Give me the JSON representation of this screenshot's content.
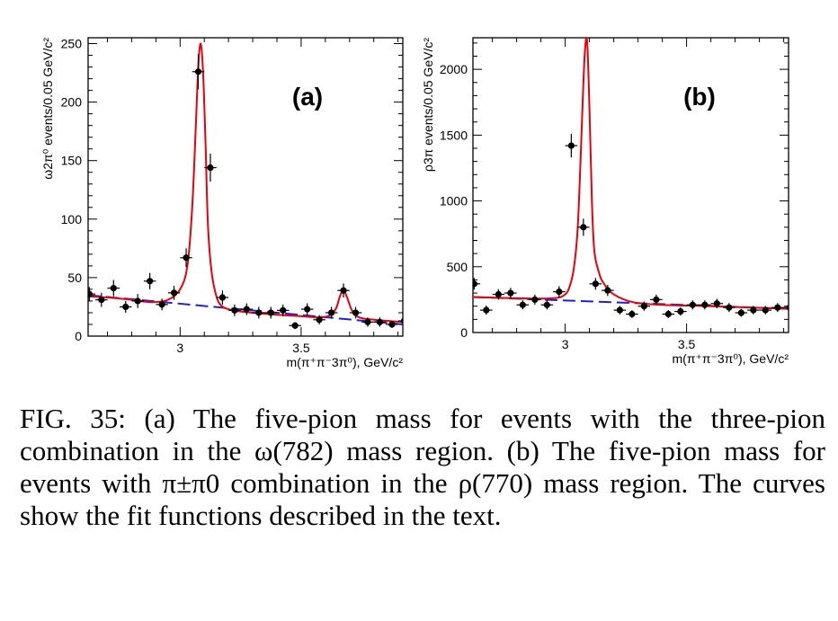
{
  "figure": {
    "caption": "FIG. 35: (a) The five-pion mass for events with the three-pion combination in the ω(782) mass region. (b) The five-pion mass for events with π±π0 combination in the ρ(770) mass region. The curves show the fit functions described in the text."
  },
  "colors": {
    "fit": "#e8000b",
    "background": "#1f1fe0",
    "points": "#000000"
  },
  "chart_data": [
    {
      "type": "scatter",
      "panel_label": "(a)",
      "xlabel": "m(π⁺π⁻3π⁰), GeV/c²",
      "ylabel": "ω2π⁰ events/0.05 GeV/c²",
      "xlim": [
        2.62,
        3.92
      ],
      "ylim": [
        0,
        255
      ],
      "xticks": [
        3,
        3.5
      ],
      "xtick_labels": [
        "3",
        "3.5"
      ],
      "yticks": [
        0,
        50,
        100,
        150,
        200,
        250
      ],
      "ytick_labels": [
        "0",
        "50",
        "100",
        "150",
        "200",
        "250"
      ],
      "x_bin_halfwidth": 0.025,
      "series": [
        {
          "kind": "data",
          "x": [
            2.625,
            2.675,
            2.725,
            2.775,
            2.825,
            2.875,
            2.925,
            2.975,
            3.025,
            3.075,
            3.125,
            3.175,
            3.225,
            3.275,
            3.325,
            3.375,
            3.425,
            3.475,
            3.525,
            3.575,
            3.625,
            3.675,
            3.725,
            3.775,
            3.825,
            3.875,
            3.925
          ],
          "y": [
            36,
            31,
            41,
            25,
            30,
            47,
            27,
            37,
            67,
            226,
            144,
            33,
            22,
            23,
            20,
            20,
            22,
            9,
            23,
            14,
            20,
            39,
            20,
            12,
            12,
            10,
            13
          ],
          "err": [
            6,
            6,
            7,
            5,
            6,
            7,
            5,
            6,
            8,
            15,
            12,
            6,
            5,
            5,
            5,
            5,
            5,
            3,
            5,
            4,
            5,
            6,
            5,
            4,
            4,
            3,
            4
          ]
        },
        {
          "kind": "fit",
          "x": [
            2.62,
            2.7,
            2.8,
            2.88,
            2.95,
            3.0,
            3.03,
            3.05,
            3.065,
            3.075,
            3.085,
            3.095,
            3.105,
            3.115,
            3.13,
            3.15,
            3.17,
            3.2,
            3.25,
            3.35,
            3.5,
            3.58,
            3.62,
            3.645,
            3.66,
            3.675,
            3.69,
            3.71,
            3.74,
            3.8,
            3.92
          ],
          "y": [
            34,
            33,
            31,
            29,
            31,
            40,
            60,
            110,
            180,
            230,
            250,
            225,
            165,
            95,
            55,
            34,
            26,
            23,
            21,
            19,
            17,
            16,
            18,
            24,
            34,
            39,
            33,
            22,
            16,
            14,
            12
          ]
        },
        {
          "kind": "background",
          "x": [
            2.62,
            3.92
          ],
          "y": [
            35,
            10
          ]
        }
      ]
    },
    {
      "type": "scatter",
      "panel_label": "(b)",
      "xlabel": "m(π⁺π⁻3π⁰), GeV/c²",
      "ylabel": "ρ3π events/0.05 GeV/c²",
      "xlim": [
        2.62,
        3.92
      ],
      "ylim": [
        0,
        2240
      ],
      "xticks": [
        3,
        3.5
      ],
      "xtick_labels": [
        "3",
        "3.5"
      ],
      "yticks": [
        0,
        500,
        1000,
        1500,
        2000
      ],
      "ytick_labels": [
        "0",
        "500",
        "1000",
        "1500",
        "2000"
      ],
      "x_bin_halfwidth": 0.025,
      "series": [
        {
          "kind": "data",
          "x": [
            2.625,
            2.675,
            2.725,
            2.775,
            2.825,
            2.875,
            2.925,
            2.975,
            3.025,
            3.075,
            3.125,
            3.175,
            3.225,
            3.275,
            3.325,
            3.375,
            3.425,
            3.475,
            3.525,
            3.575,
            3.625,
            3.675,
            3.725,
            3.775,
            3.825,
            3.875,
            3.925
          ],
          "y": [
            370,
            170,
            290,
            300,
            210,
            250,
            210,
            310,
            1420,
            800,
            370,
            320,
            170,
            140,
            200,
            250,
            140,
            160,
            210,
            210,
            220,
            190,
            150,
            170,
            170,
            190,
            190
          ],
          "err": [
            45,
            35,
            40,
            40,
            35,
            38,
            35,
            42,
            90,
            65,
            45,
            42,
            32,
            30,
            35,
            38,
            30,
            32,
            35,
            35,
            36,
            34,
            30,
            32,
            32,
            34,
            34
          ]
        },
        {
          "kind": "fit",
          "x": [
            2.62,
            2.8,
            2.95,
            3.0,
            3.02,
            3.035,
            3.05,
            3.06,
            3.07,
            3.08,
            3.09,
            3.1,
            3.11,
            3.12,
            3.14,
            3.16,
            3.2,
            3.28,
            3.4,
            3.6,
            3.92
          ],
          "y": [
            270,
            260,
            260,
            290,
            360,
            480,
            750,
            1150,
            1650,
            2100,
            2220,
            1700,
            1000,
            620,
            450,
            370,
            290,
            230,
            210,
            200,
            180
          ]
        },
        {
          "kind": "background",
          "x": [
            2.62,
            3.92
          ],
          "y": [
            270,
            180
          ]
        }
      ]
    }
  ]
}
